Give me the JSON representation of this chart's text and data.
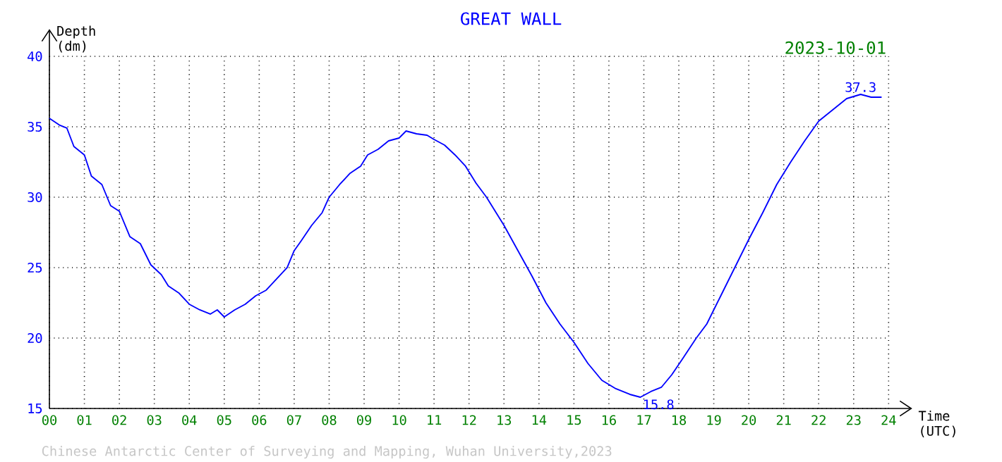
{
  "chart_data": {
    "type": "line",
    "title": "GREAT WALL",
    "subtitle": "2023-10-01",
    "xlabel": "Time (UTC)",
    "ylabel": "Depth (dm)",
    "annotations": [
      {
        "text": "37.3",
        "x": 23.2,
        "y": 37.3
      },
      {
        "text": "15.8",
        "x": 16.9,
        "y": 15.8
      },
      "Chinese Antarctic Center of Surveying and Mapping, Wuhan University,2023"
    ],
    "x": [
      0,
      0.3,
      0.5,
      0.7,
      1.0,
      1.2,
      1.5,
      1.75,
      2.0,
      2.3,
      2.6,
      2.9,
      3.2,
      3.4,
      3.7,
      4.0,
      4.3,
      4.6,
      4.8,
      5.0,
      5.3,
      5.6,
      5.9,
      6.2,
      6.5,
      6.8,
      7.0,
      7.2,
      7.5,
      7.8,
      8.0,
      8.3,
      8.6,
      8.9,
      9.1,
      9.4,
      9.7,
      10.0,
      10.2,
      10.5,
      10.8,
      11.0,
      11.3,
      11.6,
      11.9,
      12.2,
      12.5,
      13.0,
      13.4,
      13.8,
      14.2,
      14.6,
      15.0,
      15.4,
      15.8,
      16.2,
      16.6,
      16.9,
      17.2,
      17.5,
      17.8,
      18.1,
      18.5,
      18.8,
      19.2,
      19.6,
      20.0,
      20.4,
      20.8,
      21.2,
      21.6,
      22.0,
      22.4,
      22.8,
      23.2,
      23.5,
      23.8
    ],
    "values": [
      35.6,
      35.1,
      34.9,
      33.6,
      33.0,
      31.5,
      30.9,
      29.4,
      29.0,
      27.2,
      26.7,
      25.2,
      24.5,
      23.7,
      23.2,
      22.4,
      22.0,
      21.7,
      22.0,
      21.5,
      22.0,
      22.4,
      23.0,
      23.4,
      24.2,
      25.0,
      26.2,
      26.9,
      28.0,
      28.9,
      30.0,
      30.9,
      31.7,
      32.2,
      33.0,
      33.4,
      34.0,
      34.2,
      34.7,
      34.5,
      34.4,
      34.1,
      33.7,
      33.0,
      32.2,
      31.0,
      30.0,
      28.0,
      26.2,
      24.4,
      22.5,
      21.0,
      19.7,
      18.2,
      17.0,
      16.4,
      16.0,
      15.8,
      16.2,
      16.5,
      17.4,
      18.5,
      20.0,
      21.0,
      23.0,
      25.0,
      27.0,
      28.9,
      30.9,
      32.5,
      34.0,
      35.4,
      36.2,
      37.0,
      37.3,
      37.1,
      37.1
    ],
    "color": "#0000ff",
    "xlim": [
      0,
      24
    ],
    "ylim": [
      15,
      40
    ],
    "xticks": [
      {
        "value": 0,
        "label": "00"
      },
      {
        "value": 1,
        "label": "01"
      },
      {
        "value": 2,
        "label": "02"
      },
      {
        "value": 3,
        "label": "03"
      },
      {
        "value": 4,
        "label": "04"
      },
      {
        "value": 5,
        "label": "05"
      },
      {
        "value": 6,
        "label": "06"
      },
      {
        "value": 7,
        "label": "07"
      },
      {
        "value": 8,
        "label": "08"
      },
      {
        "value": 9,
        "label": "09"
      },
      10,
      11,
      12,
      13,
      14,
      15,
      16,
      17,
      18,
      19,
      20,
      21,
      22,
      23,
      24
    ],
    "yticks": [
      15,
      20,
      25,
      30,
      35,
      40
    ],
    "grid": true
  }
}
